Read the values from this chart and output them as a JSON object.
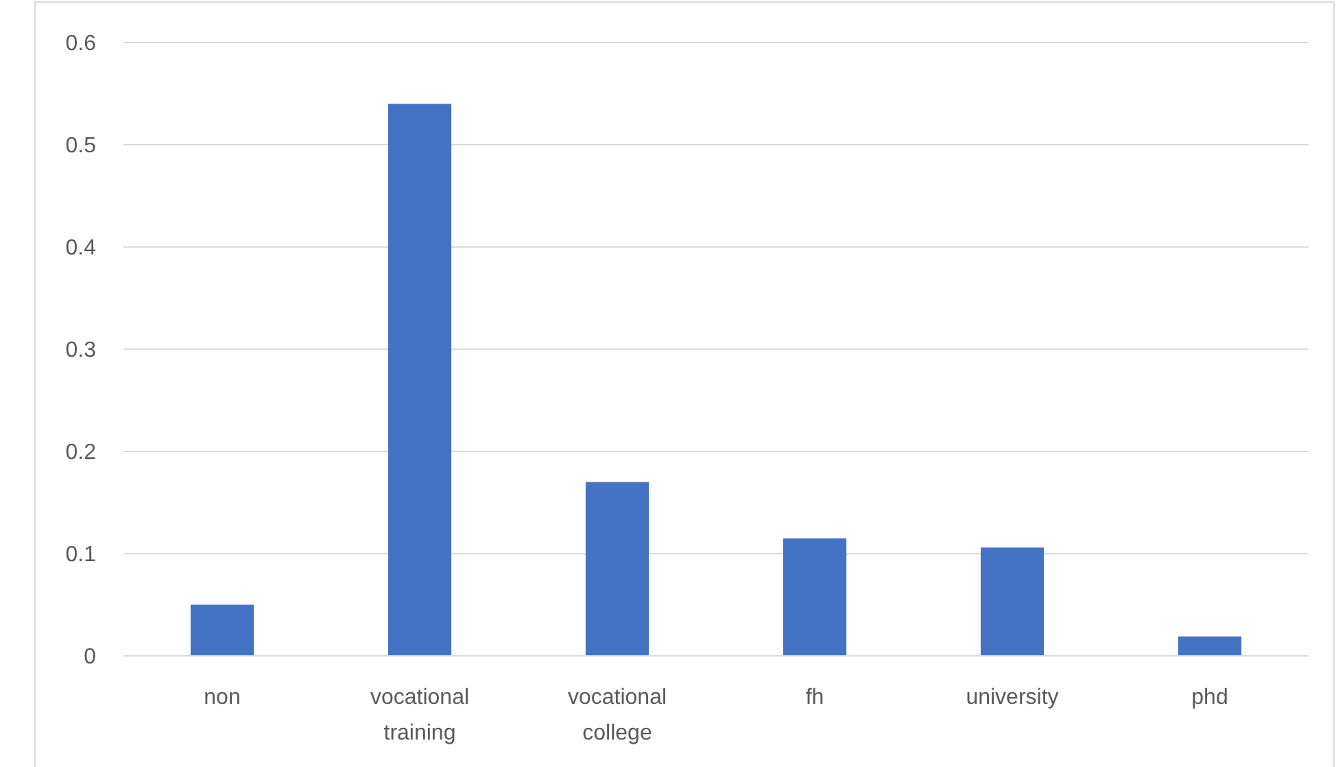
{
  "chart_data": {
    "type": "bar",
    "categories": [
      "non",
      "vocational training",
      "vocational college",
      "fh",
      "university",
      "phd"
    ],
    "values": [
      0.05,
      0.54,
      0.17,
      0.115,
      0.106,
      0.019
    ],
    "color": "#4472c4",
    "ylim": [
      0,
      0.6
    ],
    "yticks": [
      {
        "value": 0,
        "label": "0"
      },
      0.1,
      0.2,
      0.3,
      0.4,
      0.5,
      0.6
    ],
    "grid": "y"
  }
}
